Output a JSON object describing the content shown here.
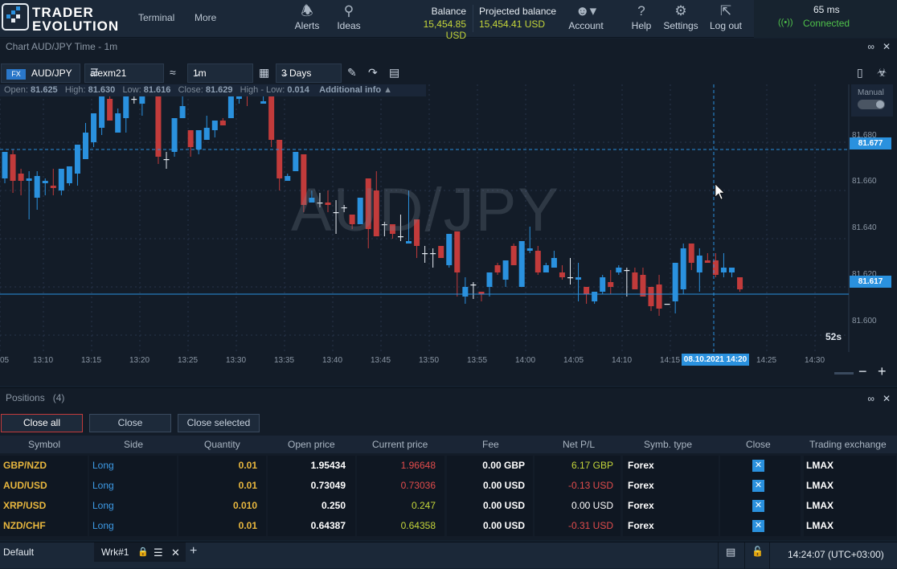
{
  "header": {
    "brand_line1": "TRADER",
    "brand_line2": "EVOLUTION",
    "nav": [
      "Terminal",
      "More"
    ],
    "alerts_label": "Alerts",
    "ideas_label": "Ideas",
    "balance_label": "Balance",
    "balance_value": "15,454.85 USD",
    "projected_label": "Projected balance",
    "projected_value": "15,454.41 USD",
    "account_label": "Account",
    "help_label": "Help",
    "settings_label": "Settings",
    "logout_label": "Log out",
    "latency": "65 ms",
    "connection_status": "Connected"
  },
  "chart_panel": {
    "title": "Chart AUD/JPY Time - 1m",
    "symbol_badge": "FX",
    "symbol": "AUD/JPY",
    "account": "alexm21",
    "timeframe": "1m",
    "range": "3 Days",
    "info_bar": {
      "open_label": "Open:",
      "open_value": "81.625",
      "high_label": "High:",
      "high_value": "81.630",
      "low_label": "Low:",
      "low_value": "81.616",
      "close_label": "Close:",
      "close_value": "81.629",
      "hl_label": "High - Low:",
      "hl_value": "0.014",
      "additional": "Additional info"
    },
    "manual_label": "Manual",
    "watermark": "AUD/JPY",
    "countdown": "52s",
    "crosshair_time": "08.10.2021 14:20",
    "crosshair_price": "81.677",
    "last_price": "81.617",
    "y_ticks": [
      "81.680",
      "81.660",
      "81.640",
      "81.620",
      "81.600"
    ],
    "x_ticks": [
      "05",
      "13:10",
      "13:15",
      "13:20",
      "13:25",
      "13:30",
      "13:35",
      "13:40",
      "13:45",
      "13:50",
      "13:55",
      "14:00",
      "14:05",
      "14:10",
      "14:15",
      "14:25",
      "14:30"
    ]
  },
  "chart_data": {
    "type": "candlestick",
    "ylim": [
      81.593,
      81.704
    ],
    "up_color": "#2a91de",
    "down_color": "#c23b3b",
    "candles": [
      [
        81.665,
        81.676,
        81.663,
        81.676
      ],
      [
        81.675,
        81.677,
        81.659,
        81.664
      ],
      [
        81.667,
        81.669,
        81.658,
        81.664
      ],
      [
        81.664,
        81.668,
        81.648,
        81.665
      ],
      [
        81.657,
        81.668,
        81.652,
        81.666
      ],
      [
        81.663,
        81.665,
        81.658,
        81.664
      ],
      [
        81.662,
        81.669,
        81.658,
        81.661
      ],
      [
        81.66,
        81.669,
        81.658,
        81.669
      ],
      [
        81.663,
        81.67,
        81.662,
        81.67
      ],
      [
        81.667,
        81.679,
        81.662,
        81.679
      ],
      [
        81.673,
        81.688,
        81.673,
        81.684
      ],
      [
        81.68,
        81.692,
        81.678,
        81.692
      ],
      [
        81.686,
        81.702,
        81.683,
        81.7
      ],
      [
        81.698,
        81.704,
        81.689,
        81.689
      ],
      [
        81.684,
        81.694,
        81.684,
        81.692
      ],
      [
        81.69,
        81.7,
        81.684,
        81.699
      ],
      [
        81.698,
        81.701,
        81.696,
        81.698
      ],
      [
        81.696,
        81.704,
        81.691,
        81.703
      ],
      [
        81.702,
        81.704,
        81.7,
        81.703
      ],
      [
        81.706,
        81.706,
        81.671,
        81.674
      ],
      [
        81.673,
        81.676,
        81.669,
        81.673
      ],
      [
        81.676,
        81.69,
        81.674,
        81.69
      ],
      [
        81.69,
        81.699,
        81.69,
        81.695
      ],
      [
        81.685,
        81.685,
        81.674,
        81.678
      ],
      [
        81.677,
        81.685,
        81.675,
        81.685
      ],
      [
        81.681,
        81.691,
        81.681,
        81.686
      ],
      [
        81.685,
        81.689,
        81.682,
        81.689
      ],
      [
        81.689,
        81.69,
        81.687,
        81.687
      ],
      [
        81.69,
        81.7,
        81.69,
        81.7
      ],
      [
        81.698,
        81.704,
        81.696,
        81.704
      ],
      [
        81.7,
        81.704,
        81.695,
        81.699
      ],
      [
        81.702,
        81.702,
        81.701,
        81.701
      ],
      [
        81.696,
        81.704,
        81.696,
        81.697
      ],
      [
        81.706,
        81.706,
        81.678,
        81.681
      ],
      [
        81.681,
        81.681,
        81.66,
        81.665
      ],
      [
        81.664,
        81.667,
        81.664,
        81.666
      ],
      [
        81.668,
        81.676,
        81.668,
        81.676
      ],
      [
        81.675,
        81.675,
        81.651,
        81.654
      ],
      [
        81.655,
        81.66,
        81.655,
        81.657
      ],
      [
        81.655,
        81.659,
        81.653,
        81.655
      ],
      [
        81.655,
        81.66,
        81.651,
        81.654
      ],
      [
        81.651,
        81.656,
        81.642,
        81.651
      ],
      [
        81.653,
        81.654,
        81.651,
        81.653
      ],
      [
        81.65,
        81.65,
        81.644,
        81.646
      ],
      [
        81.646,
        81.657,
        81.646,
        81.657
      ],
      [
        81.665,
        81.665,
        81.636,
        81.644
      ],
      [
        81.66,
        81.668,
        81.641,
        81.641
      ],
      [
        81.646,
        81.647,
        81.641,
        81.646
      ],
      [
        81.646,
        81.646,
        81.64,
        81.642
      ],
      [
        81.641,
        81.65,
        81.639,
        81.641
      ],
      [
        81.638,
        81.66,
        81.638,
        81.639
      ],
      [
        81.648,
        81.648,
        81.632,
        81.637
      ],
      [
        81.634,
        81.637,
        81.63,
        81.634
      ],
      [
        81.634,
        81.636,
        81.628,
        81.634
      ],
      [
        81.637,
        81.637,
        81.632,
        81.632
      ],
      [
        81.629,
        81.642,
        81.628,
        81.642
      ],
      [
        81.643,
        81.643,
        81.616,
        81.626
      ],
      [
        81.616,
        81.624,
        81.613,
        81.62
      ],
      [
        81.621,
        81.622,
        81.615,
        81.621
      ],
      [
        81.618,
        81.618,
        81.614,
        81.617
      ],
      [
        81.62,
        81.626,
        81.616,
        81.626
      ],
      [
        81.629,
        81.63,
        81.625,
        81.626
      ],
      [
        81.623,
        81.631,
        81.62,
        81.631
      ],
      [
        81.637,
        81.638,
        81.629,
        81.629
      ],
      [
        81.62,
        81.639,
        81.62,
        81.639
      ],
      [
        81.635,
        81.645,
        81.634,
        81.636
      ],
      [
        81.635,
        81.637,
        81.625,
        81.626
      ],
      [
        81.626,
        81.63,
        81.627,
        81.629
      ],
      [
        81.628,
        81.635,
        81.628,
        81.632
      ],
      [
        81.626,
        81.629,
        81.623,
        81.624
      ],
      [
        81.624,
        81.632,
        81.621,
        81.624
      ],
      [
        81.623,
        81.63,
        81.614,
        81.624
      ],
      [
        81.62,
        81.62,
        81.613,
        81.617
      ],
      [
        81.614,
        81.618,
        81.613,
        81.618
      ],
      [
        81.618,
        81.625,
        81.617,
        81.624
      ],
      [
        81.622,
        81.627,
        81.617,
        81.62
      ],
      [
        81.626,
        81.629,
        81.625,
        81.628
      ],
      [
        81.627,
        81.628,
        81.616,
        81.627
      ],
      [
        81.626,
        81.628,
        81.619,
        81.619
      ],
      [
        81.625,
        81.628,
        81.616,
        81.616
      ],
      [
        81.62,
        81.62,
        81.61,
        81.612
      ],
      [
        81.621,
        81.625,
        81.608,
        81.611
      ],
      [
        81.613,
        81.613,
        81.613,
        81.613
      ],
      [
        81.614,
        81.63,
        81.609,
        81.63
      ],
      [
        81.619,
        81.638,
        81.617,
        81.636
      ],
      [
        81.638,
        81.638,
        81.627,
        81.63
      ],
      [
        81.626,
        81.636,
        81.618,
        81.633
      ],
      [
        81.631,
        81.634,
        81.63,
        81.63
      ],
      [
        81.631,
        81.634,
        81.624,
        81.625
      ],
      [
        81.626,
        81.634,
        81.624,
        81.628
      ],
      [
        81.626,
        81.628,
        81.624,
        81.628
      ],
      [
        81.624,
        81.623,
        81.618,
        81.619
      ]
    ]
  },
  "positions_panel": {
    "title": "Positions",
    "count": "(4)",
    "buttons": {
      "close_all": "Close all",
      "close": "Close",
      "close_selected": "Close selected"
    },
    "columns": [
      "Symbol",
      "Side",
      "Quantity",
      "Open price",
      "Current price",
      "Fee",
      "Net P/L",
      "Symb. type",
      "Close",
      "Trading exchange"
    ],
    "rows": [
      {
        "symbol": "GBP/NZD",
        "side": "Long",
        "quantity": "0.01",
        "open": "1.95434",
        "current": "1.96648",
        "current_dir": "down",
        "fee": "0.00 GBP",
        "pnl": "6.17 GBP",
        "pnl_dir": "up",
        "type": "Forex",
        "exchange": "LMAX"
      },
      {
        "symbol": "AUD/USD",
        "side": "Long",
        "quantity": "0.01",
        "open": "0.73049",
        "current": "0.73036",
        "current_dir": "down",
        "fee": "0.00 USD",
        "pnl": "-0.13 USD",
        "pnl_dir": "down",
        "type": "Forex",
        "exchange": "LMAX"
      },
      {
        "symbol": "XRP/USD",
        "side": "Long",
        "quantity": "0.010",
        "open": "0.250",
        "current": "0.247",
        "current_dir": "up",
        "fee": "0.00 USD",
        "pnl": "0.00 USD",
        "pnl_dir": "flat",
        "type": "Forex",
        "exchange": "LMAX"
      },
      {
        "symbol": "NZD/CHF",
        "side": "Long",
        "quantity": "0.01",
        "open": "0.64387",
        "current": "0.64358",
        "current_dir": "up",
        "fee": "0.00 USD",
        "pnl": "-0.31 USD",
        "pnl_dir": "down",
        "type": "Forex",
        "exchange": "LMAX"
      }
    ]
  },
  "statusbar": {
    "workspace": "Default",
    "tab": "Wrk#1",
    "clock": "14:24:07 (UTC+03:00)"
  }
}
